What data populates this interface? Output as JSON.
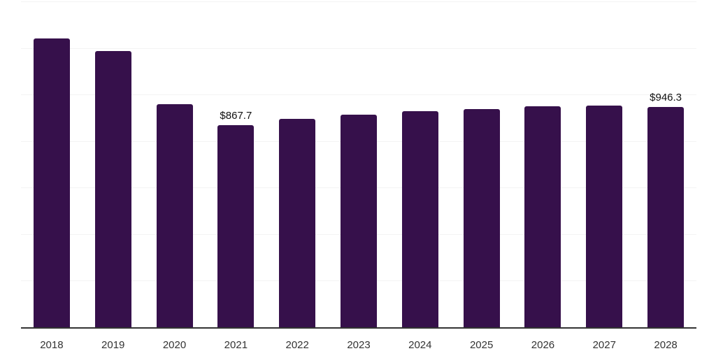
{
  "chart_data": {
    "type": "bar",
    "title": "",
    "xlabel": "",
    "ylabel": "",
    "categories": [
      "2018",
      "2019",
      "2020",
      "2021",
      "2022",
      "2023",
      "2024",
      "2025",
      "2026",
      "2027",
      "2028"
    ],
    "values": [
      1240,
      1187,
      959,
      867.7,
      896,
      914,
      929,
      938,
      948,
      951,
      946.3
    ],
    "data_labels": [
      "",
      "",
      "",
      "$867.7",
      "",
      "",
      "",
      "",
      "",
      "",
      "$946.3"
    ],
    "ylim": [
      0,
      1400
    ],
    "gridline_step": 200,
    "grid_on": true,
    "legend": "none",
    "colors": {
      "bar": "#36104B",
      "gridline": "#f4f4f4",
      "axis": "#333333",
      "x_tick_label": "#333333",
      "value_label": "#111111"
    }
  }
}
